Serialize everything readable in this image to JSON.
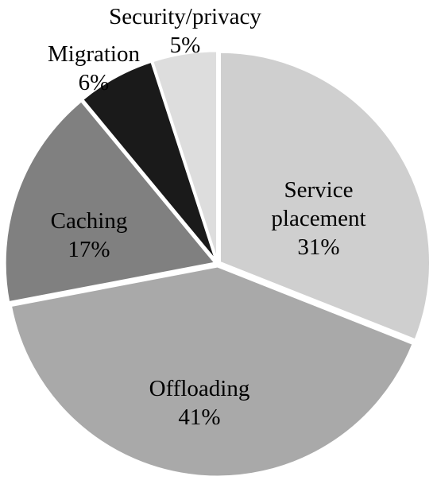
{
  "chart_data": {
    "type": "pie",
    "start_angle_deg": 0,
    "direction": "clockwise",
    "slices": [
      {
        "label": [
          "Service",
          "placement"
        ],
        "pct_text": "31%",
        "value": 31,
        "color": "#cfcfcf",
        "text_color": "#000000"
      },
      {
        "label": [
          "Offloading"
        ],
        "pct_text": "41%",
        "value": 41,
        "color": "#a9a9a9",
        "text_color": "#000000"
      },
      {
        "label": [
          "Caching"
        ],
        "pct_text": "17%",
        "value": 17,
        "color": "#808080",
        "text_color": "#000000"
      },
      {
        "label": [
          "Migration"
        ],
        "pct_text": "6%",
        "value": 6,
        "color": "#1a1a1a",
        "text_color": "#000000"
      },
      {
        "label": [
          "Security/privacy"
        ],
        "pct_text": "5%",
        "value": 5,
        "color": "#dddddd",
        "text_color": "#000000"
      }
    ]
  }
}
